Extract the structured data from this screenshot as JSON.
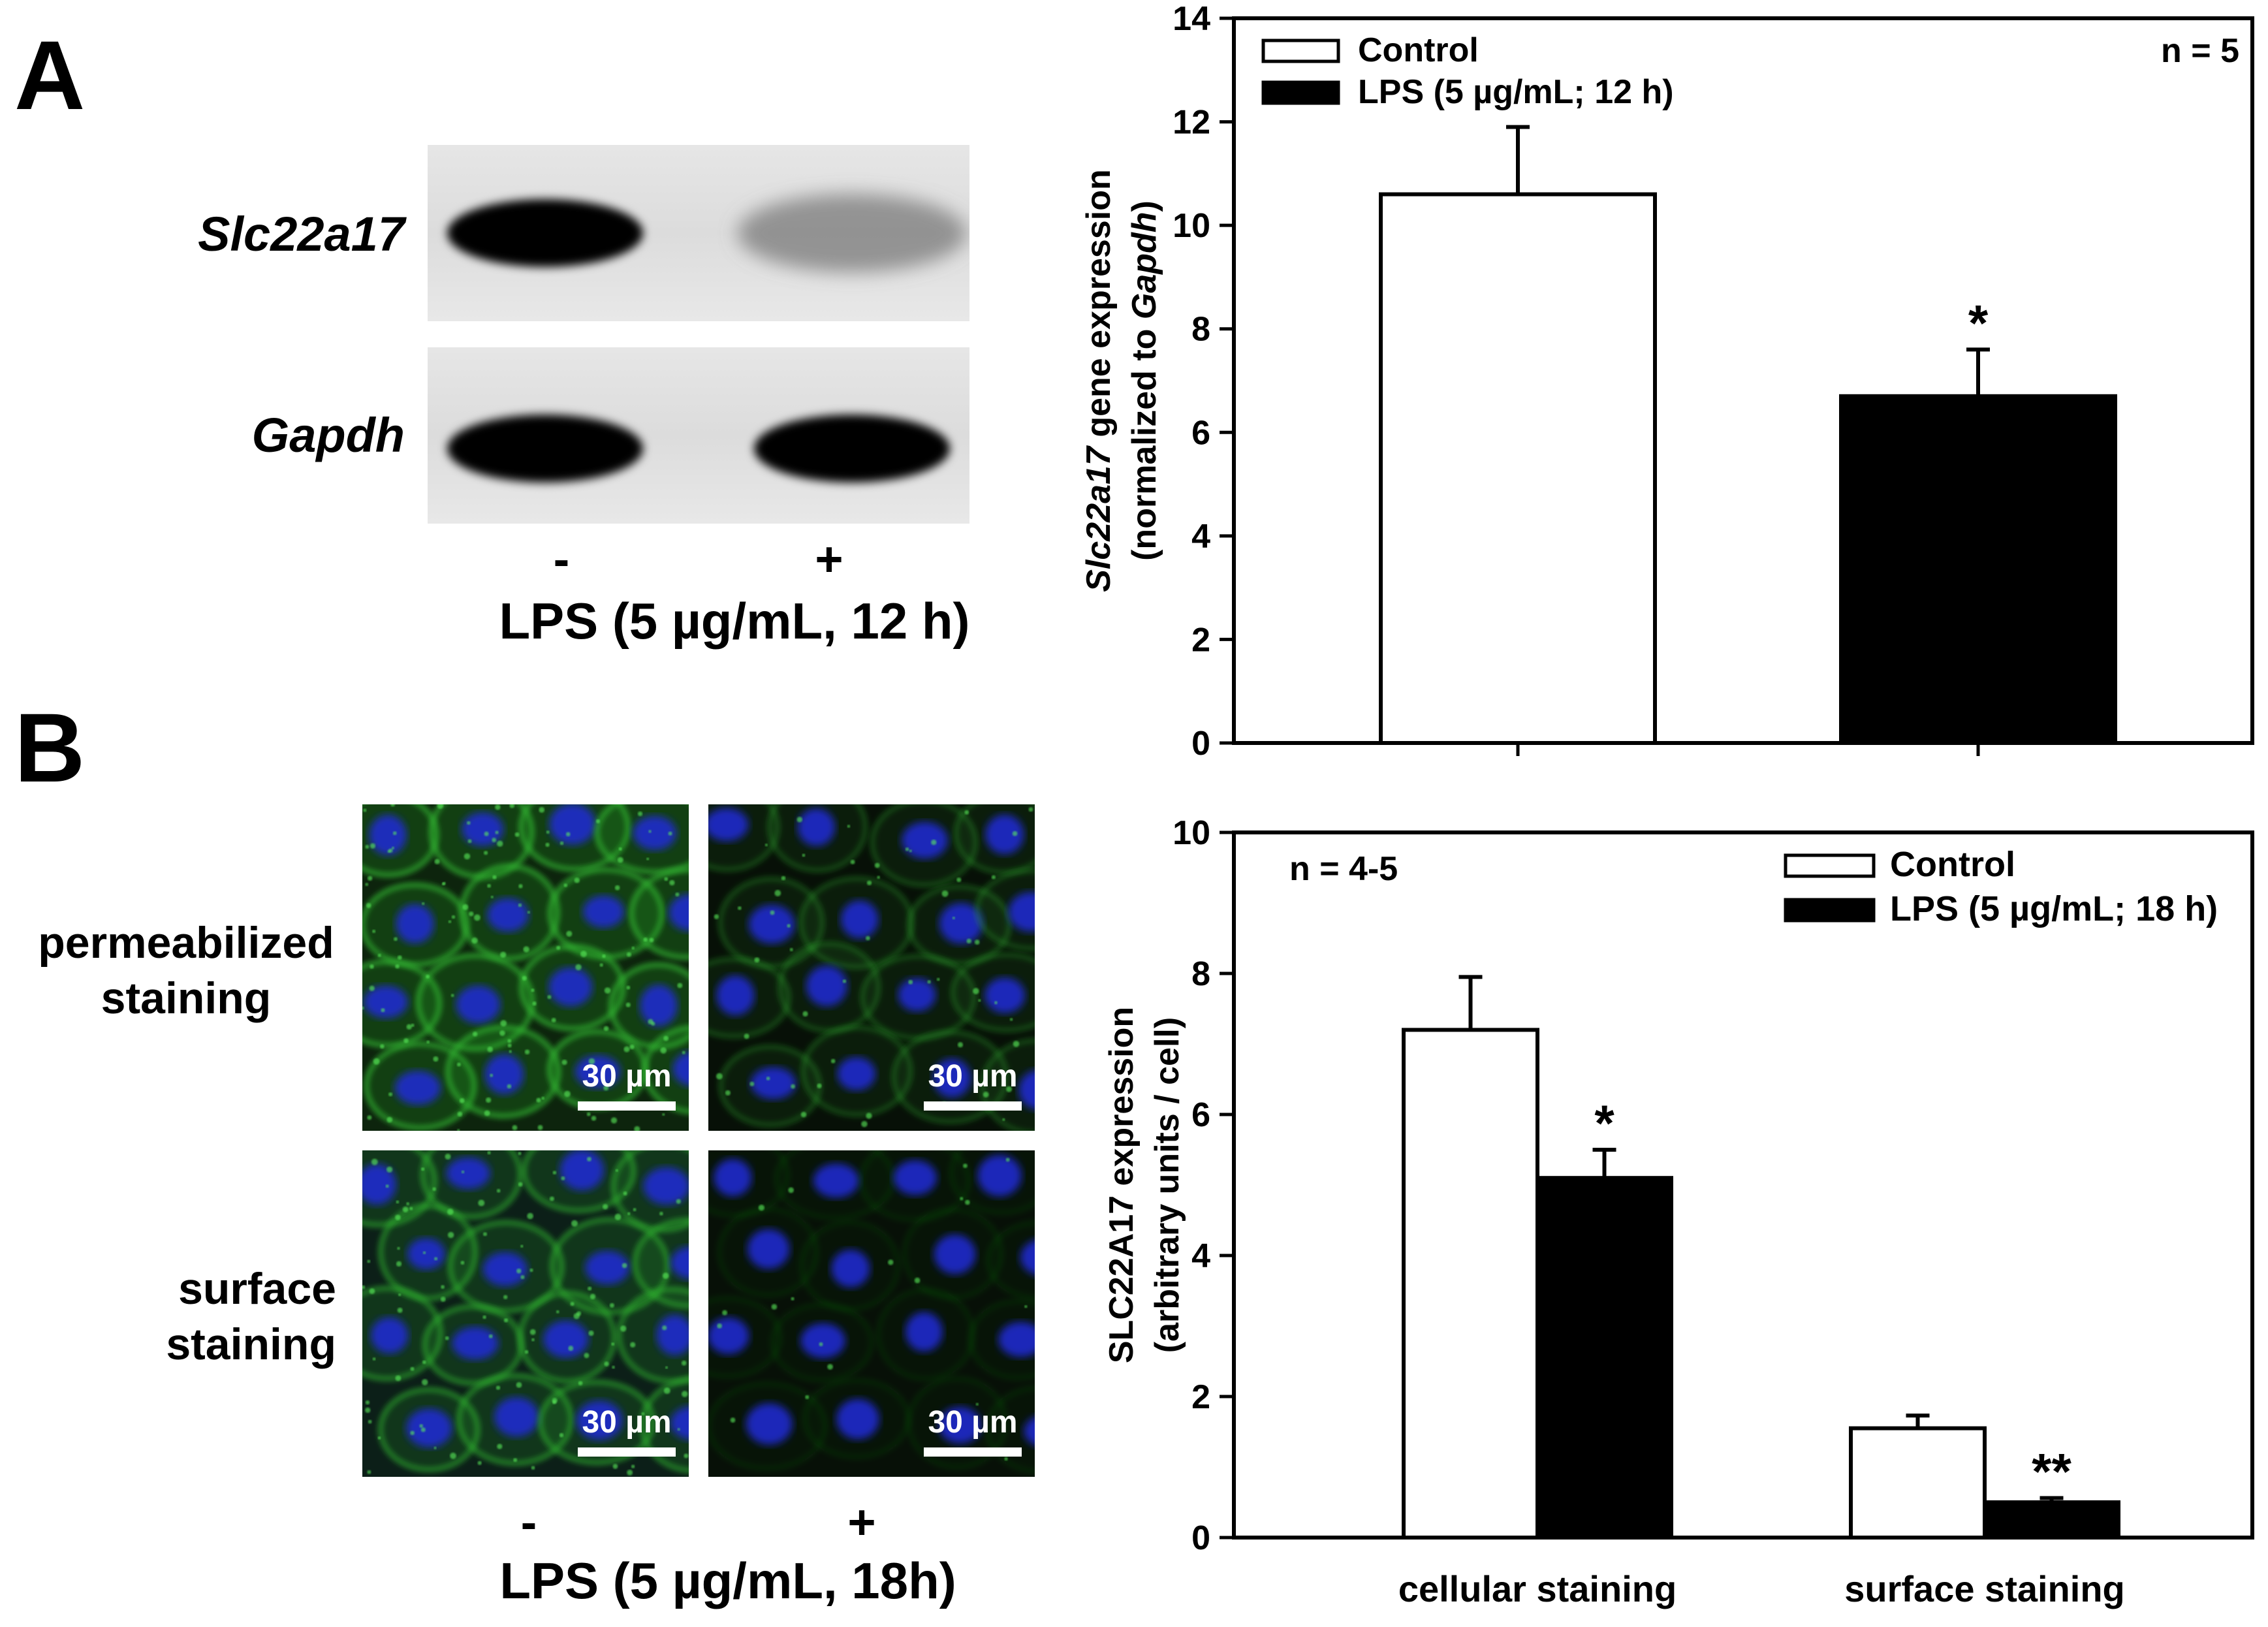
{
  "panels": {
    "a": "A",
    "b": "B"
  },
  "blot": {
    "rows": [
      "Slc22a17",
      "Gapdh"
    ],
    "lane_signs": [
      "-",
      "+"
    ],
    "treatment": "LPS (5 µg/mL, 12 h)",
    "band_intensity": {
      "Slc22a17": [
        1.0,
        0.45
      ],
      "Gapdh": [
        1.0,
        1.0
      ]
    }
  },
  "micrographs": {
    "rows": [
      {
        "line1": "permeabilized",
        "line2": "staining"
      },
      {
        "line1": "surface",
        "line2": "staining"
      }
    ],
    "scale_bar_label": "30 µm",
    "lane_signs": [
      "-",
      "+"
    ],
    "treatment": "LPS (5 µg/mL, 18h)",
    "colors": {
      "membrane": "#2fb52f",
      "nucleus": "#1f2ad8"
    }
  },
  "chart_data": [
    {
      "type": "bar",
      "categories": [
        "Control",
        "LPS (5 µg/mL; 12 h)"
      ],
      "values": [
        10.6,
        6.7
      ],
      "errors": [
        1.3,
        0.9
      ],
      "significance": [
        "",
        "*"
      ],
      "ylabel_italic": "Slc22a17",
      "ylabel_rest": " gene expression",
      "ylabel2_pre": "(normalized to ",
      "ylabel2_italic": "Gapdh",
      "ylabel2_post": ")",
      "ylim": [
        0,
        14
      ],
      "yticks": [
        "0",
        "2",
        "4",
        "6",
        "8",
        "10",
        "12",
        "14"
      ],
      "n_label": "n = 5",
      "legend": [
        "Control",
        "LPS (5 µg/mL; 12 h)"
      ],
      "legend_position": "top-left",
      "colors": [
        "#ffffff",
        "#000000"
      ]
    },
    {
      "type": "bar",
      "categories": [
        "cellular staining",
        "surface staining"
      ],
      "series": [
        {
          "name": "Control",
          "values": [
            7.2,
            1.55
          ],
          "errors": [
            0.75,
            0.18
          ],
          "significance": [
            "",
            ""
          ]
        },
        {
          "name": "LPS (5 µg/mL; 18 h)",
          "values": [
            5.1,
            0.5
          ],
          "errors": [
            0.4,
            0.06
          ],
          "significance": [
            "*",
            "**"
          ]
        }
      ],
      "ylabel": "SLC22A17 expression",
      "ylabel2": "(arbitrary units / cell)",
      "ylim": [
        0,
        10
      ],
      "yticks": [
        "0",
        "2",
        "4",
        "6",
        "8",
        "10"
      ],
      "n_label": "n = 4-5",
      "legend_position": "top-right",
      "colors": [
        "#ffffff",
        "#000000"
      ]
    }
  ]
}
